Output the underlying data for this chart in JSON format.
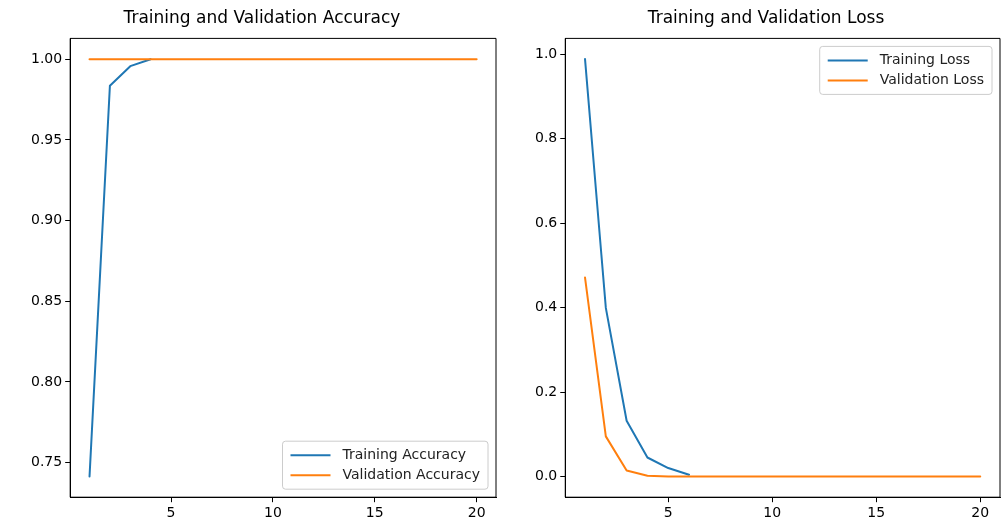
{
  "chart_data": [
    {
      "type": "line",
      "title": "Training and Validation Accuracy",
      "x": [
        1,
        2,
        3,
        4,
        5,
        6,
        7,
        8,
        9,
        10,
        11,
        12,
        13,
        14,
        15,
        16,
        17,
        18,
        19,
        20
      ],
      "series": [
        {
          "name": "Training Accuracy",
          "color": "#1f77b4",
          "values": [
            0.7415,
            0.9836,
            0.9957,
            1.0,
            null,
            null,
            null,
            null,
            null,
            null,
            null,
            null,
            null,
            null,
            null,
            null,
            null,
            null,
            null,
            null
          ]
        },
        {
          "name": "Validation Accuracy",
          "color": "#ff7f0e",
          "values": [
            1.0,
            1.0,
            1.0,
            1.0,
            1.0,
            1.0,
            1.0,
            1.0,
            1.0,
            1.0,
            1.0,
            1.0,
            1.0,
            1.0,
            1.0,
            1.0,
            1.0,
            1.0,
            1.0,
            1.0
          ]
        }
      ],
      "xlim": [
        0.05,
        20.95
      ],
      "xticks": [
        5,
        10,
        15,
        20
      ],
      "ylim": [
        0.7286,
        1.0129
      ],
      "yticks": [
        0.75,
        {
          "value": 0.8,
          "label": "0.80"
        },
        0.85,
        {
          "value": 0.9,
          "label": "0.90"
        },
        0.95,
        {
          "value": 1.0,
          "label": "1.00"
        }
      ],
      "grid": false,
      "legend": "bottom right",
      "marker": "none",
      "line_style": "solid"
    },
    {
      "type": "line",
      "title": "Training and Validation Loss",
      "x": [
        1,
        2,
        3,
        4,
        5,
        6,
        7,
        8,
        9,
        10,
        11,
        12,
        13,
        14,
        15,
        16,
        17,
        18,
        19,
        20
      ],
      "series": [
        {
          "name": "Training Loss",
          "color": "#1f77b4",
          "values": [
            0.988,
            0.399,
            0.132,
            0.045,
            0.02,
            0.004,
            null,
            null,
            null,
            null,
            null,
            null,
            null,
            null,
            null,
            null,
            null,
            null,
            null,
            null
          ]
        },
        {
          "name": "Validation Loss",
          "color": "#ff7f0e",
          "values": [
            0.471,
            0.095,
            0.014,
            0.002,
            0,
            0,
            0,
            0,
            0,
            0,
            0,
            0,
            0,
            0,
            0,
            0,
            0,
            0,
            0,
            0
          ]
        }
      ],
      "xlim": [
        0.05,
        20.95
      ],
      "xticks": [
        5,
        10,
        15,
        20
      ],
      "ylim": [
        -0.049,
        1.037
      ],
      "yticks": [
        {
          "value": 0,
          "label": "0.0"
        },
        0.2,
        0.4,
        0.6,
        0.8,
        {
          "value": 1,
          "label": "1.0"
        }
      ],
      "grid": false,
      "legend": "top right",
      "marker": "none",
      "line_style": "solid"
    }
  ]
}
